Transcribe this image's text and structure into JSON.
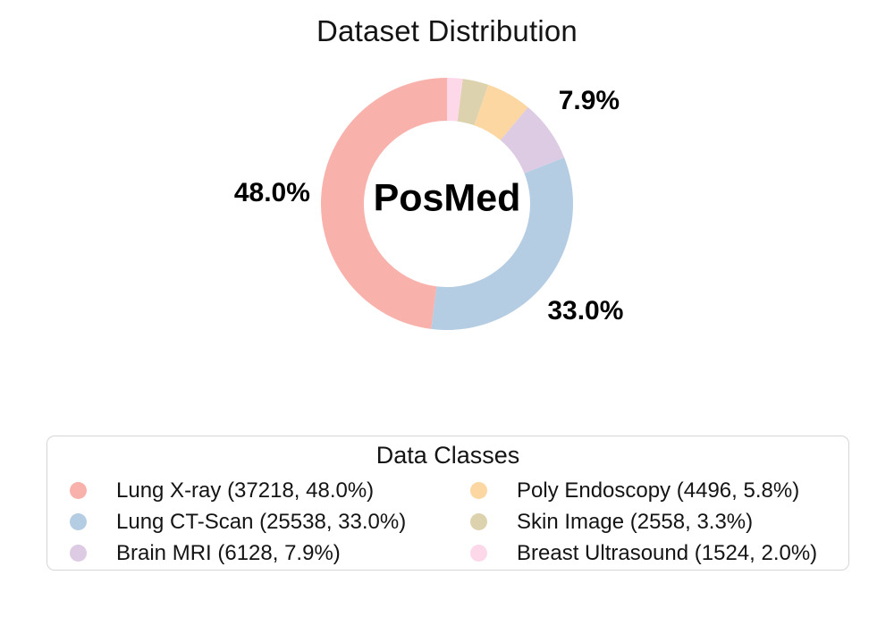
{
  "chart_data": {
    "type": "pie",
    "variant": "donut",
    "title": "Dataset Distribution",
    "center_label": "PosMed",
    "start_angle_deg": 90,
    "direction": "counterclockwise",
    "donut_hole_ratio": 0.66,
    "slices": [
      {
        "label": "Lung X-ray",
        "count": 37218,
        "percent": 48.0,
        "color": "#f9b1ab"
      },
      {
        "label": "Lung CT-Scan",
        "count": 25538,
        "percent": 33.0,
        "color": "#b4cde2"
      },
      {
        "label": "Brain MRI",
        "count": 6128,
        "percent": 7.9,
        "color": "#dccbe3"
      },
      {
        "label": "Poly Endoscopy",
        "count": 4496,
        "percent": 5.8,
        "color": "#fcd7a2"
      },
      {
        "label": "Skin Image",
        "count": 2558,
        "percent": 3.3,
        "color": "#ddd2ae"
      },
      {
        "label": "Breast Ultrasound",
        "count": 1524,
        "percent": 2.0,
        "color": "#fcd8e9"
      }
    ],
    "outside_labels": [
      {
        "slice_index": 0,
        "text": "48.0%"
      },
      {
        "slice_index": 1,
        "text": "33.0%"
      },
      {
        "slice_index": 2,
        "text": "7.9%"
      }
    ],
    "legend": {
      "title": "Data Classes",
      "position": "bottom",
      "columns": 2,
      "items": [
        "Lung X-ray (37218, 48.0%)",
        "Lung CT-Scan (25538, 33.0%)",
        "Brain MRI (6128, 7.9%)",
        "Poly Endoscopy (4496, 5.8%)",
        "Skin Image (2558, 3.3%)",
        "Breast Ultrasound (1524, 2.0%)"
      ]
    }
  }
}
